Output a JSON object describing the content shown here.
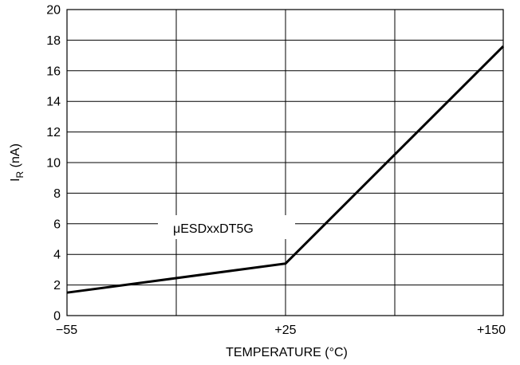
{
  "chart_data": {
    "type": "line",
    "title": "",
    "xlabel": "TEMPERATURE (°C)",
    "ylabel_main": "I",
    "ylabel_sub": "R",
    "ylabel_rest": " (nA)",
    "x_tick_labels": [
      "−55",
      "+25",
      "+150"
    ],
    "y_ticks": [
      0,
      2,
      4,
      6,
      8,
      10,
      12,
      14,
      16,
      18,
      20
    ],
    "ylim": [
      0,
      20
    ],
    "grid": true,
    "series": [
      {
        "name": "",
        "points": [
          {
            "x": "−55",
            "y": 1.5
          },
          {
            "x": "+25",
            "y": 3.4
          },
          {
            "x": "+150",
            "y": 17.6
          }
        ]
      }
    ],
    "annotation": "μESDxxDT5G"
  }
}
